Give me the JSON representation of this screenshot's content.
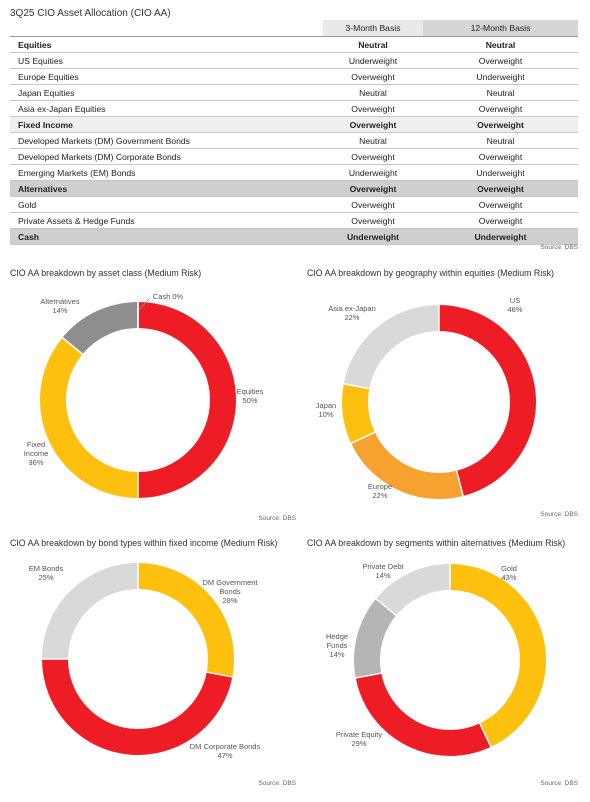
{
  "page_title": "3Q25 CIO Asset Allocation (CIO AA)",
  "table": {
    "columns": [
      "",
      "3-Month Basis",
      "12-Month Basis"
    ],
    "rows": [
      {
        "label": "Equities",
        "m3": "Neutral",
        "m12": "Neutral",
        "kind": "cat"
      },
      {
        "label": "US Equities",
        "m3": "Underweight",
        "m12": "Overweight",
        "kind": "item"
      },
      {
        "label": "Europe Equities",
        "m3": "Overweight",
        "m12": "Underweight",
        "kind": "item"
      },
      {
        "label": "Japan Equities",
        "m3": "Neutral",
        "m12": "Neutral",
        "kind": "item"
      },
      {
        "label": "Asia ex-Japan Equities",
        "m3": "Overweight",
        "m12": "Overweight",
        "kind": "item"
      },
      {
        "label": "Fixed Income",
        "m3": "Overweight",
        "m12": "Overweight",
        "kind": "cat-light"
      },
      {
        "label": "Developed Markets (DM) Government Bonds",
        "m3": "Neutral",
        "m12": "Neutral",
        "kind": "item"
      },
      {
        "label": "Developed Markets (DM) Corporate Bonds",
        "m3": "Overweight",
        "m12": "Overweight",
        "kind": "item"
      },
      {
        "label": "Emerging Markets (EM) Bonds",
        "m3": "Underweight",
        "m12": "Underweight",
        "kind": "item"
      },
      {
        "label": "Alternatives",
        "m3": "Overweight",
        "m12": "Overweight",
        "kind": "cat-dark"
      },
      {
        "label": "Gold",
        "m3": "Overweight",
        "m12": "Overweight",
        "kind": "item"
      },
      {
        "label": "Private Assets & Hedge Funds",
        "m3": "Overweight",
        "m12": "Overweight",
        "kind": "item"
      },
      {
        "label": "Cash",
        "m3": "Underweight",
        "m12": "Underweight",
        "kind": "cat-dark"
      }
    ],
    "source": "Source: DBS"
  },
  "colors": {
    "red": "#ee1c24",
    "yellow": "#fdc00f",
    "orange": "#f7a130",
    "dark_gray": "#8e8e8e",
    "mid_gray": "#b5b5b5",
    "light_gray": "#d9d9d9"
  },
  "chart_data": [
    {
      "type": "pie",
      "title": "CIO AA breakdown by asset class (Medium Risk)",
      "categories": [
        "Equities",
        "Fixed Income",
        "Alternatives",
        "Cash"
      ],
      "values": [
        50,
        36,
        14,
        0
      ],
      "labels": [
        "Equities\n50%",
        "Fixed\nIncome\n36%",
        "Alternatives\n14%",
        "Cash 0%"
      ],
      "colors": [
        "#ee1c24",
        "#fdc00f",
        "#8e8e8e",
        "#d9d9d9"
      ],
      "source": "Source: DBS"
    },
    {
      "type": "pie",
      "title": "CIO AA breakdown by geography within equities (Medium Risk)",
      "categories": [
        "US",
        "Europe",
        "Japan",
        "Asia ex-Japan"
      ],
      "values": [
        46,
        22,
        10,
        22
      ],
      "labels": [
        "US\n46%",
        "Europe\n22%",
        "Japan\n10%",
        "Asia ex-Japan\n22%"
      ],
      "colors": [
        "#ee1c24",
        "#f7a130",
        "#fdc00f",
        "#d9d9d9"
      ],
      "source": "Source: DBS"
    },
    {
      "type": "pie",
      "title": "CIO AA breakdown by bond types within fixed income (Medium Risk)",
      "categories": [
        "DM Government Bonds",
        "DM Corporate Bonds",
        "EM Bonds"
      ],
      "values": [
        28,
        47,
        25
      ],
      "labels": [
        "DM Government\nBonds\n28%",
        "DM Corporate Bonds\n47%",
        "EM Bonds\n25%"
      ],
      "colors": [
        "#fdc00f",
        "#ee1c24",
        "#d9d9d9"
      ],
      "source": "Source: DBS"
    },
    {
      "type": "pie",
      "title": "CIO AA breakdown by segments within alternatives (Medium Risk)",
      "categories": [
        "Gold",
        "Private Equity",
        "Hedge Funds",
        "Private Debt"
      ],
      "values": [
        43,
        29,
        14,
        14
      ],
      "labels": [
        "Gold\n43%",
        "Private Equity\n29%",
        "Hedge\nFunds\n14%",
        "Private Debt\n14%"
      ],
      "colors": [
        "#fdc00f",
        "#ee1c24",
        "#b5b5b5",
        "#d9d9d9"
      ],
      "source": "Source: DBS"
    }
  ]
}
